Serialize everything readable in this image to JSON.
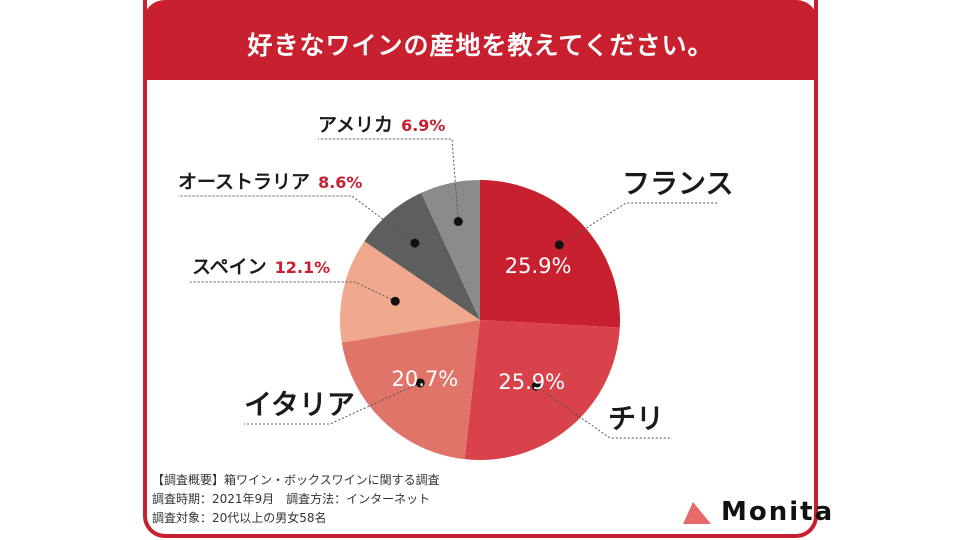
{
  "title": "好きなワインの産地を教えてください。",
  "colors": {
    "accent": "#c8202f",
    "france": "#c8202f",
    "chile": "#d9424a",
    "italy": "#e07468",
    "spain": "#f0a98c",
    "australia": "#5e5e5e",
    "america": "#8b8b8b",
    "value_red": "#c8202f"
  },
  "chart_data": {
    "type": "pie",
    "slices": [
      {
        "label": "フランス",
        "value": 25.9,
        "value_text": "25.9%",
        "color_key": "france"
      },
      {
        "label": "チリ",
        "value": 25.9,
        "value_text": "25.9%",
        "color_key": "chile"
      },
      {
        "label": "イタリア",
        "value": 20.7,
        "value_text": "20.7%",
        "color_key": "italy"
      },
      {
        "label": "スペイン",
        "value": 12.1,
        "value_text": "12.1%",
        "color_key": "spain"
      },
      {
        "label": "オーストラリア",
        "value": 8.6,
        "value_text": "8.6%",
        "color_key": "australia"
      },
      {
        "label": "アメリカ",
        "value": 6.9,
        "value_text": "6.9%",
        "color_key": "america"
      }
    ],
    "start": "12 o'clock",
    "direction": "clockwise"
  },
  "summary": {
    "line1": "【調査概要】箱ワイン・ボックスワインに関する調査",
    "line2": "調査時期：2021年9月　調査方法：インターネット",
    "line3": "調査対象：20代以上の男女58名"
  },
  "brand": {
    "name": "Monita",
    "icon": "triangle-logo-icon"
  }
}
